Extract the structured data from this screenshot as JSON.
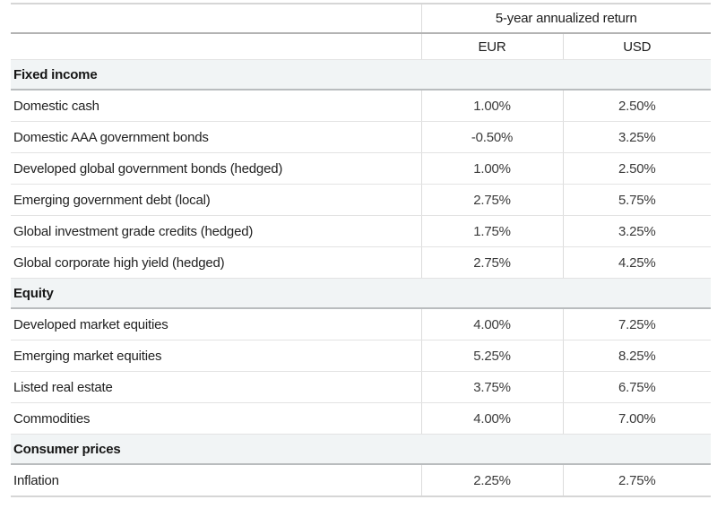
{
  "table": {
    "header_group": "5-year annualized return",
    "columns": [
      "EUR",
      "USD"
    ],
    "sections": [
      {
        "name": "Fixed income",
        "rows": [
          {
            "label": "Domestic cash",
            "eur": "1.00%",
            "usd": "2.50%"
          },
          {
            "label": "Domestic AAA government bonds",
            "eur": "-0.50%",
            "usd": "3.25%"
          },
          {
            "label": "Developed global government bonds (hedged)",
            "eur": "1.00%",
            "usd": "2.50%"
          },
          {
            "label": "Emerging government debt (local)",
            "eur": "2.75%",
            "usd": "5.75%"
          },
          {
            "label": "Global investment grade credits (hedged)",
            "eur": "1.75%",
            "usd": "3.25%"
          },
          {
            "label": "Global corporate high yield (hedged)",
            "eur": "2.75%",
            "usd": "4.25%"
          }
        ]
      },
      {
        "name": "Equity",
        "rows": [
          {
            "label": "Developed market equities",
            "eur": "4.00%",
            "usd": "7.25%"
          },
          {
            "label": "Emerging market equities",
            "eur": "5.25%",
            "usd": "8.25%"
          },
          {
            "label": "Listed real estate",
            "eur": "3.75%",
            "usd": "6.75%"
          },
          {
            "label": "Commodities",
            "eur": "4.00%",
            "usd": "7.00%"
          }
        ]
      },
      {
        "name": "Consumer prices",
        "rows": [
          {
            "label": "Inflation",
            "eur": "2.25%",
            "usd": "2.75%"
          }
        ]
      }
    ]
  },
  "colors": {
    "section_row_background": "#f1f4f5",
    "row_separator": "#e3e3e3",
    "column_divider": "#dcdcdc",
    "outer_border": "#d6d6d6",
    "header_underline": "#b3b3b3",
    "text": "#1d1d1d",
    "value_text": "#3a3a3a"
  }
}
